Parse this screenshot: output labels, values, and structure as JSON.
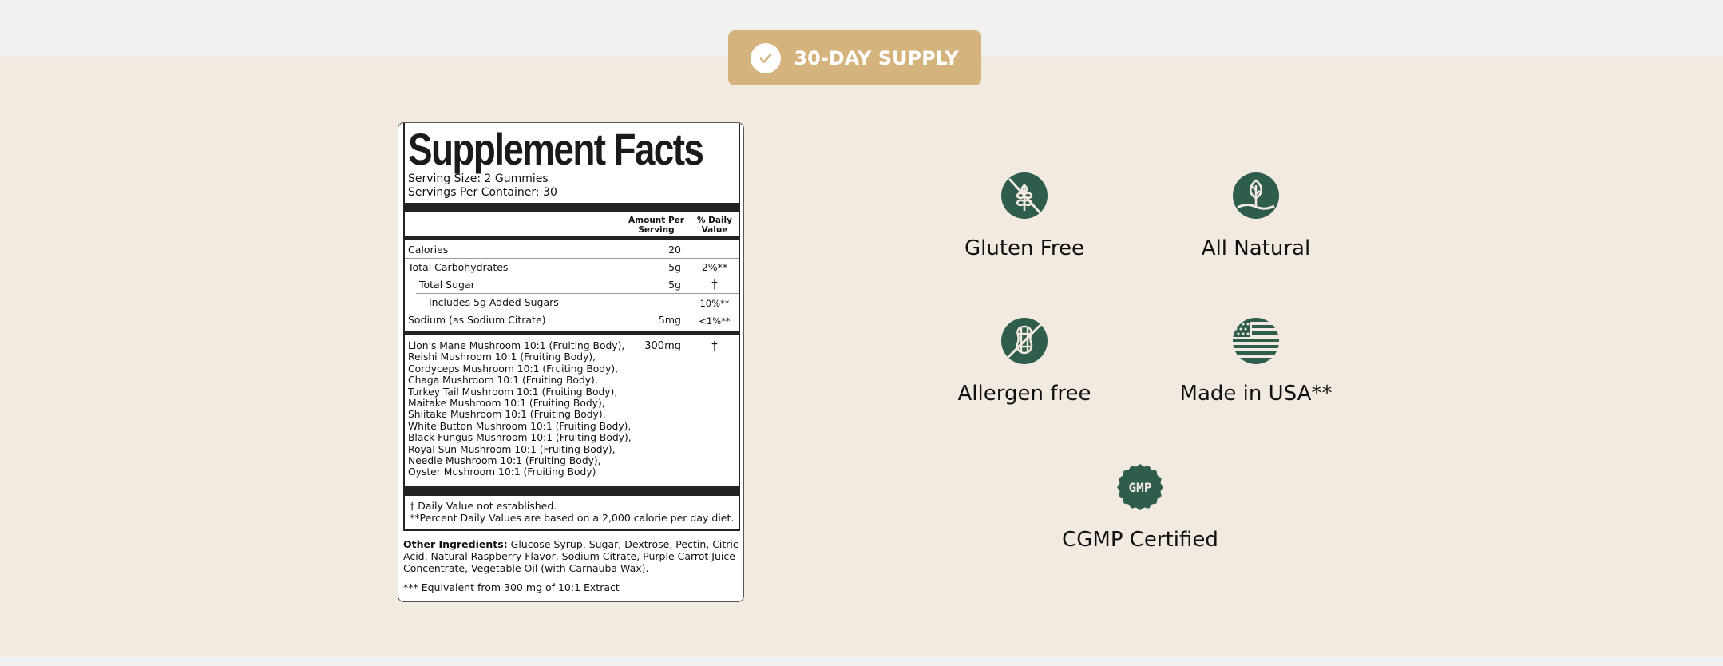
{
  "badge": {
    "label": "30-DAY SUPPLY",
    "icon": "check-circle-icon",
    "color": "#d5b37d"
  },
  "facts": {
    "title": "Supplement Facts",
    "serving_size": "Serving Size: 2 Gummies",
    "servings_per_container": "Servings Per Container: 30",
    "col_amount": "Amount Per Serving",
    "col_daily": "% Daily Value",
    "rows": [
      {
        "name": "Calories",
        "amount": "20",
        "daily": ""
      },
      {
        "name": "Total Carbohydrates",
        "amount": "5g",
        "daily": "2%**"
      },
      {
        "name": "Total Sugar",
        "amount": "5g",
        "daily": "†"
      },
      {
        "name": "Includes 5g Added Sugars",
        "amount": "",
        "daily": "10%**"
      },
      {
        "name": "Sodium (as Sodium Citrate)",
        "amount": "5mg",
        "daily": "<1%**"
      }
    ],
    "blend_amount": "300mg",
    "blend_daily": "†",
    "blend": [
      "Lion's Mane Mushroom 10:1 (Fruiting Body),",
      "Reishi Mushroom 10:1 (Fruiting Body),",
      "Cordyceps Mushroom 10:1 (Fruiting Body),",
      "Chaga Mushroom 10:1 (Fruiting Body),",
      "Turkey Tail Mushroom 10:1 (Fruiting Body),",
      "Maitake Mushroom 10:1 (Fruiting Body),",
      "Shiitake Mushroom 10:1 (Fruiting Body),",
      "White Button Mushroom 10:1 (Fruiting Body),",
      "Black Fungus Mushroom 10:1 (Fruiting Body),",
      "Royal Sun Mushroom 10:1 (Fruiting Body),",
      "Needle Mushroom 10:1 (Fruiting Body),",
      "Oyster Mushroom 10:1 (Fruiting Body)"
    ],
    "footnote1": "† Daily Value not established.",
    "footnote2": "**Percent Daily Values are based on a 2,000 calorie per day diet.",
    "other_label": "Other Ingredients:",
    "other_text": " Glucose Syrup, Sugar, Dextrose, Pectin, Citric Acid, Natural Raspberry Flavor, Sodium Citrate, Purple Carrot Juice Concentrate, Vegetable Oil (with Carnauba Wax).",
    "equivalent": "*** Equivalent from 300 mg of 10:1 Extract"
  },
  "features": [
    {
      "label": "Gluten Free",
      "icon": "gluten-free-icon"
    },
    {
      "label": "All Natural",
      "icon": "leaf-icon"
    },
    {
      "label": "Allergen free",
      "icon": "peanut-free-icon"
    },
    {
      "label": "Made in USA**",
      "icon": "usa-flag-icon"
    },
    {
      "label": "CGMP Certified",
      "icon": "gmp-seal-icon",
      "seal_text": "GMP"
    }
  ],
  "icon_color": "#2e5e4b"
}
